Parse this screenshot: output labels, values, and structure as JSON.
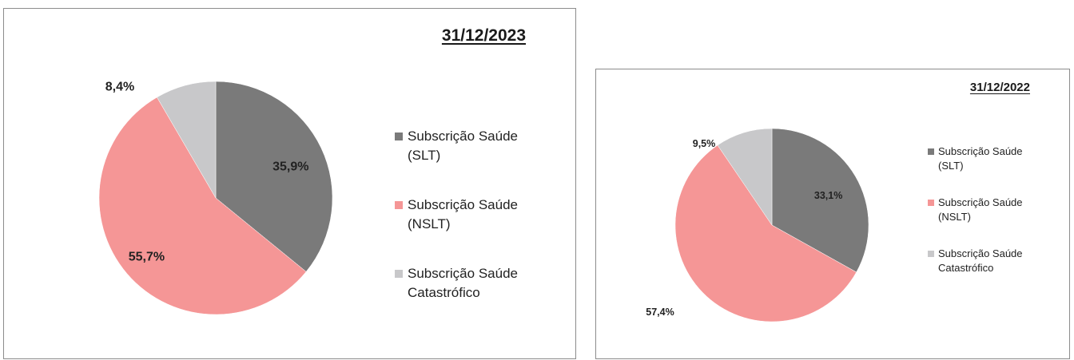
{
  "chart_data": [
    {
      "type": "pie",
      "title": "31/12/2023",
      "categories": [
        "Subscrição Saúde (SLT)",
        "Subscrição Saúde (NSLT)",
        "Subscrição Saúde Catastrófico"
      ],
      "values": [
        35.9,
        55.7,
        8.4
      ],
      "labels": [
        "35,9%",
        "55,7%",
        "8,4%"
      ],
      "legend_lines": [
        [
          "Subscrição Saúde",
          "(SLT)"
        ],
        [
          "Subscrição Saúde",
          "(NSLT)"
        ],
        [
          "Subscrição Saúde",
          "Catastrófico"
        ]
      ],
      "colors": [
        "#7a7a7a",
        "#f59696",
        "#c8c8ca"
      ],
      "legend": "right"
    },
    {
      "type": "pie",
      "title": "31/12/2022",
      "categories": [
        "Subscrição Saúde (SLT)",
        "Subscrição Saúde (NSLT)",
        "Subscrição Saúde Catastrófico"
      ],
      "values": [
        33.1,
        57.4,
        9.5
      ],
      "labels": [
        "33,1%",
        "57,4%",
        "9,5%"
      ],
      "legend_lines": [
        [
          "Subscrição Saúde",
          "(SLT)"
        ],
        [
          "Subscrição Saúde",
          "(NSLT)"
        ],
        [
          "Subscrição Saúde",
          "Catastrófico"
        ]
      ],
      "colors": [
        "#7a7a7a",
        "#f59696",
        "#c8c8ca"
      ],
      "legend": "right"
    }
  ]
}
